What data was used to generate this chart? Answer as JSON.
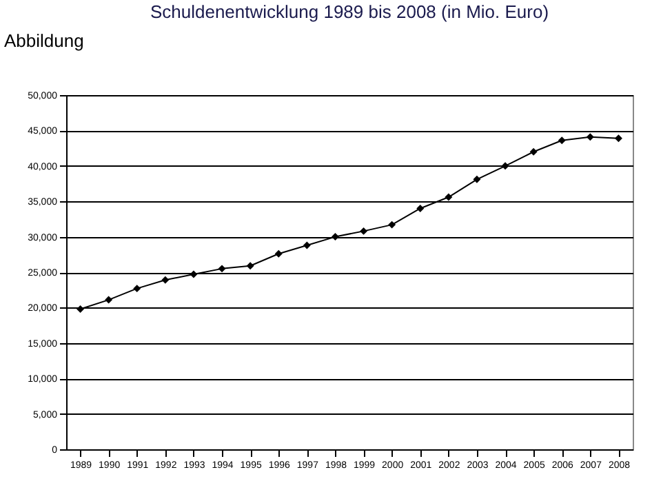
{
  "chart_data": {
    "type": "line",
    "title": "Schuldenentwicklung 1989 bis 2008 (in Mio. Euro)",
    "annotations": [
      "Abbildung"
    ],
    "categories": [
      "1989",
      "1990",
      "1991",
      "1992",
      "1993",
      "1994",
      "1995",
      "1996",
      "1997",
      "1998",
      "1999",
      "2000",
      "2001",
      "2002",
      "2003",
      "2004",
      "2005",
      "2006",
      "2007",
      "2008"
    ],
    "series": [
      {
        "color": "#000000",
        "values": [
          19800,
          21100,
          22700,
          23900,
          24700,
          25500,
          25900,
          27600,
          28800,
          30000,
          30800,
          31700,
          34000,
          35600,
          38100,
          40000,
          42000,
          43600,
          44100,
          43900
        ]
      }
    ],
    "ylim": [
      0,
      50000
    ],
    "yticks": [
      {
        "value": 0,
        "label": "0"
      },
      {
        "value": 5000,
        "label": "5,000"
      },
      {
        "value": 10000,
        "label": "10,000"
      },
      {
        "value": 15000,
        "label": "15,000"
      },
      {
        "value": 20000,
        "label": "20,000"
      },
      {
        "value": 25000,
        "label": "25,000"
      },
      {
        "value": 30000,
        "label": "30,000"
      },
      {
        "value": 35000,
        "label": "35,000"
      },
      {
        "value": 40000,
        "label": "40,000"
      },
      {
        "value": 45000,
        "label": "45,000"
      },
      {
        "value": 50000,
        "label": "50,000"
      }
    ],
    "grid": "y",
    "marker": "diamond",
    "line_style": "solid"
  }
}
